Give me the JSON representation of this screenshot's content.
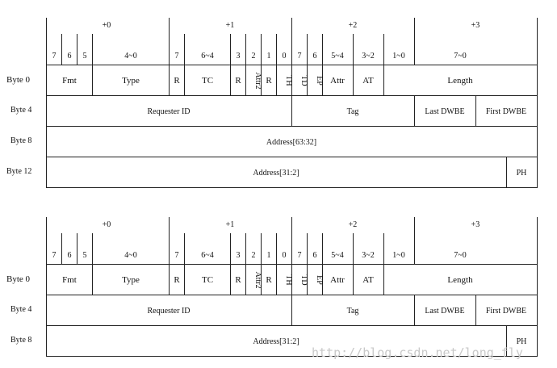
{
  "bytes": [
    "+0",
    "+1",
    "+2",
    "+3"
  ],
  "bit_numbers": [
    "7",
    "6",
    "5",
    "4~0",
    "7",
    "6~4",
    "3",
    "2",
    "1",
    "0",
    "7",
    "6",
    "5~4",
    "3~2",
    "1~0",
    "7~0"
  ],
  "row_labels": [
    "Byte 0",
    "Byte 4",
    "Byte 8",
    "Byte 12"
  ],
  "fields": {
    "fmt": "Fmt",
    "type": "Type",
    "r": "R",
    "tc": "TC",
    "attr2": "Attr2",
    "th": "TH",
    "td": "TD",
    "ep": "EP",
    "attr": "Attr",
    "at": "AT",
    "length": "Length",
    "requester_id": "Requester ID",
    "tag": "Tag",
    "last_dwbe": "Last DWBE",
    "first_dwbe": "First DWBE",
    "address_63_32": "Address[63:32]",
    "address_31_2": "Address[31:2]",
    "ph": "PH"
  },
  "watermark": "http://blog.csdn.net/long_fly"
}
